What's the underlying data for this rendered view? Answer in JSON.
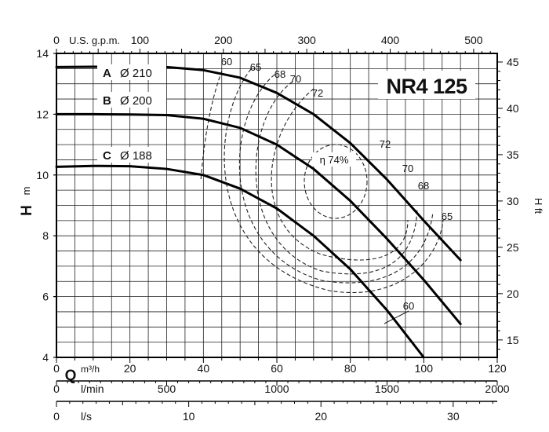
{
  "chart_data": {
    "type": "line",
    "title": "NR4 125",
    "x_axis": {
      "symbol": "Q",
      "unit": "m³/h",
      "range": [
        0,
        120
      ],
      "ticks": [
        0,
        20,
        40,
        60,
        80,
        100,
        120
      ]
    },
    "y_axis": {
      "symbol": "H",
      "unit": "m",
      "range": [
        4,
        14
      ],
      "ticks": [
        4,
        6,
        8,
        10,
        12,
        14
      ]
    },
    "top_axis": {
      "label": "U.S. g.p.m.",
      "range": [
        0,
        528.3
      ],
      "ticks": [
        0,
        100,
        200,
        300,
        400,
        500
      ]
    },
    "right_axis": {
      "label": "H ft",
      "range": [
        13.12,
        45.93
      ],
      "ticks": [
        15,
        20,
        25,
        30,
        35,
        40,
        45
      ]
    },
    "lmin_axis": {
      "label": "l/min",
      "range": [
        0,
        2000
      ],
      "ticks": [
        0,
        500,
        1000,
        1500,
        2000
      ]
    },
    "ls_axis": {
      "label": "l/s",
      "range": [
        0,
        33.33
      ],
      "ticks": [
        0,
        10,
        20,
        30
      ]
    },
    "grid": true,
    "series": [
      {
        "name": "A",
        "diameter": "Ø 210",
        "x": [
          0,
          10,
          20,
          30,
          40,
          50,
          60,
          70,
          80,
          90,
          100,
          110
        ],
        "y": [
          13.55,
          13.56,
          13.56,
          13.55,
          13.45,
          13.2,
          12.7,
          12.0,
          11.05,
          9.85,
          8.5,
          7.2
        ]
      },
      {
        "name": "B",
        "diameter": "Ø 200",
        "x": [
          0,
          10,
          20,
          30,
          40,
          50,
          60,
          70,
          80,
          90,
          100,
          110
        ],
        "y": [
          12.0,
          12.0,
          11.99,
          11.97,
          11.85,
          11.55,
          11.0,
          10.2,
          9.15,
          7.9,
          6.55,
          5.1
        ]
      },
      {
        "name": "C",
        "diameter": "Ø 188",
        "x": [
          0,
          10,
          20,
          30,
          40,
          50,
          60,
          70,
          80,
          90,
          100
        ],
        "y": [
          10.27,
          10.3,
          10.29,
          10.2,
          10.0,
          9.55,
          8.9,
          8.0,
          6.9,
          5.55,
          4.0
        ]
      }
    ],
    "efficiency_labels": {
      "top": [
        "60",
        "65",
        "68",
        "70",
        "72"
      ],
      "center": "η 74%",
      "right": [
        "72",
        "70",
        "68",
        "65",
        "60"
      ]
    }
  }
}
